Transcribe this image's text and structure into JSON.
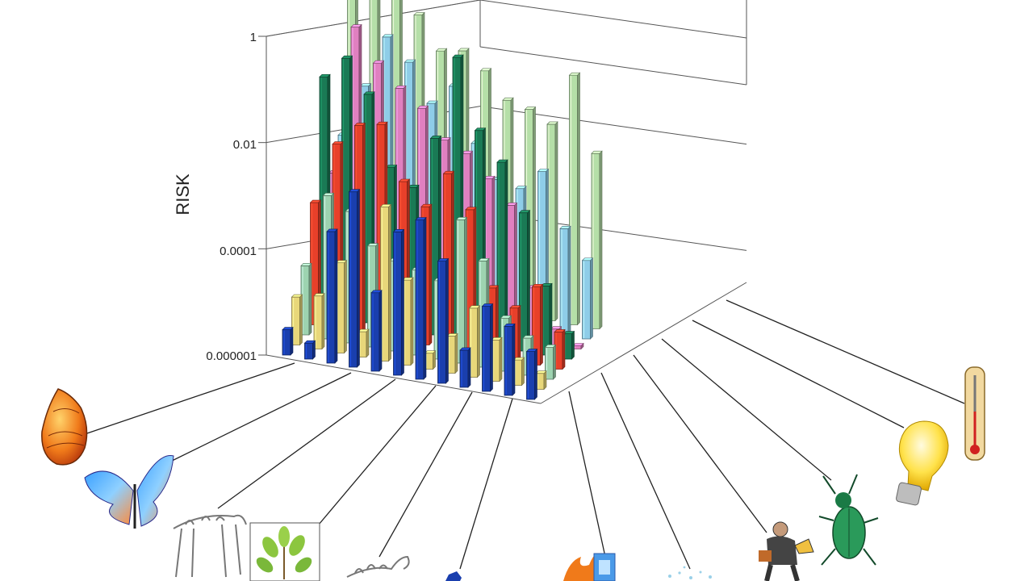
{
  "chart_data": {
    "type": "bar3d",
    "title": "",
    "ylabel": "RISK",
    "yscale": "log",
    "ylim": [
      1e-06,
      1
    ],
    "yticks": [
      "1",
      "0.01",
      "0.0001",
      "0.000001"
    ],
    "grid": true,
    "legend": "icons along the front edge",
    "category_icons": [
      "seashell-icon",
      "butterfly-icon",
      "animal-skeleton-icon",
      "plant-icon",
      "horse-skeleton-icon",
      "blue-figure-icon",
      "fire-icon",
      "snow-icon",
      "person-with-megaphone-icon",
      "beetle-icon",
      "light-bulb-icon",
      "thermometer-icon"
    ],
    "series": [
      {
        "color": "#1a3fae",
        "values": [
          3e-06,
          2e-06,
          0.0003,
          0.002,
          3e-05,
          0.0005,
          0.001,
          0.0002,
          5e-06,
          4e-05,
          2e-05,
          8e-06
        ]
      },
      {
        "color": "#e8d77a",
        "values": [
          8e-06,
          1e-05,
          5e-05,
          3e-06,
          0.0008,
          4e-05,
          2e-06,
          5e-06,
          2e-05,
          6e-06,
          3e-06,
          2e-06
        ]
      },
      {
        "color": "#9dd3b0",
        "values": [
          2e-05,
          0.0005,
          0.0003,
          8e-05,
          5e-05,
          4e-05,
          3e-05,
          0.0005,
          0.0001,
          1e-05,
          5e-06,
          4e-06
        ]
      },
      {
        "color": "#e8402a",
        "values": [
          0.0002,
          0.003,
          0.008,
          0.01,
          0.001,
          0.0004,
          0.002,
          0.0005,
          2e-05,
          1e-05,
          3e-05,
          5e-06
        ]
      },
      {
        "color": "#1a7a55",
        "values": [
          0.03,
          0.08,
          0.02,
          0.001,
          0.0005,
          0.005,
          0.2,
          0.01,
          0.003,
          0.0004,
          2e-05,
          3e-06
        ]
      },
      {
        "color": "#e080c0",
        "values": [
          0.0003,
          0.2,
          0.05,
          0.02,
          0.01,
          0.003,
          0.002,
          0.0008,
          0.0003,
          1e-05,
          2e-06,
          1e-06
        ]
      },
      {
        "color": "#8ecde8",
        "values": [
          0.001,
          0.01,
          0.1,
          0.04,
          0.008,
          0.02,
          0.002,
          0.0005,
          0.0004,
          0.001,
          0.0001,
          3e-05
        ]
      },
      {
        "color": "#b5dfa8",
        "values": [
          0.5,
          0.3,
          0.4,
          0.2,
          0.05,
          0.06,
          0.03,
          0.01,
          0.008,
          0.005,
          0.05,
          0.002
        ]
      }
    ]
  },
  "axis": {
    "ylabel": "RISK",
    "tick_1": "1",
    "tick_2": "0.01",
    "tick_3": "0.0001",
    "tick_4": "0.000001"
  }
}
